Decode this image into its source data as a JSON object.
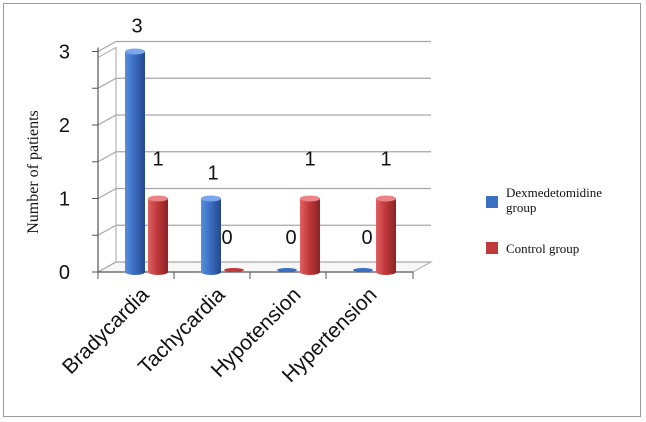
{
  "chart_data": {
    "type": "bar",
    "categories": [
      "Bradycardia",
      "Tachycardia",
      "Hypotension",
      "Hypertension"
    ],
    "series": [
      {
        "name": "Dexmedetomidine group",
        "values": [
          3,
          1,
          0,
          0
        ],
        "color": "#3b6fc2"
      },
      {
        "name": "Control group",
        "values": [
          1,
          0,
          1,
          1
        ],
        "color": "#c0393b"
      }
    ],
    "ylabel": "Number of patients",
    "ylim": [
      0,
      3
    ],
    "yticks": [
      0,
      1,
      2,
      3
    ],
    "grid": true,
    "legend_position": "right",
    "style": "3d-cylinder"
  }
}
